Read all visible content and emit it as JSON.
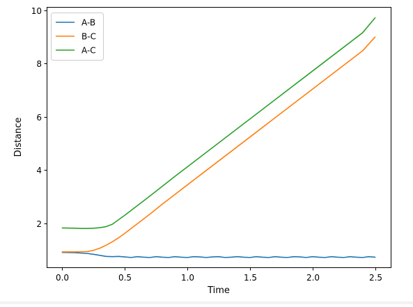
{
  "chart_data": {
    "type": "line",
    "title": "",
    "xlabel": "Time",
    "ylabel": "Distance",
    "xlim": [
      -0.125,
      2.625
    ],
    "ylim": [
      0.34,
      10.13
    ],
    "xticks": [
      0.0,
      0.5,
      1.0,
      1.5,
      2.0,
      2.5
    ],
    "xtick_labels": [
      "0.0",
      "0.5",
      "1.0",
      "1.5",
      "2.0",
      "2.5"
    ],
    "yticks": [
      2,
      4,
      6,
      8,
      10
    ],
    "ytick_labels": [
      "2",
      "4",
      "6",
      "8",
      "10"
    ],
    "grid": false,
    "legend_position": "upper-left",
    "series": [
      {
        "name": "A-B",
        "color": "#1f77b4",
        "x": [
          0.0,
          0.1,
          0.2,
          0.25,
          0.3,
          0.35,
          0.4,
          0.45,
          0.5,
          0.55,
          0.6,
          0.65,
          0.7,
          0.75,
          0.8,
          0.85,
          0.9,
          0.95,
          1.0,
          1.05,
          1.1,
          1.15,
          1.2,
          1.25,
          1.3,
          1.35,
          1.4,
          1.45,
          1.5,
          1.55,
          1.6,
          1.65,
          1.7,
          1.75,
          1.8,
          1.85,
          1.9,
          1.95,
          2.0,
          2.05,
          2.1,
          2.15,
          2.2,
          2.25,
          2.3,
          2.35,
          2.4,
          2.45,
          2.5
        ],
        "y": [
          0.9,
          0.89,
          0.86,
          0.83,
          0.79,
          0.75,
          0.74,
          0.75,
          0.73,
          0.71,
          0.74,
          0.72,
          0.71,
          0.74,
          0.72,
          0.71,
          0.74,
          0.72,
          0.71,
          0.74,
          0.73,
          0.71,
          0.73,
          0.74,
          0.71,
          0.72,
          0.74,
          0.72,
          0.71,
          0.74,
          0.72,
          0.71,
          0.74,
          0.72,
          0.71,
          0.74,
          0.73,
          0.71,
          0.74,
          0.72,
          0.71,
          0.74,
          0.72,
          0.71,
          0.74,
          0.72,
          0.71,
          0.74,
          0.72
        ]
      },
      {
        "name": "B-C",
        "color": "#ff7f0e",
        "x": [
          0.0,
          0.1,
          0.2,
          0.25,
          0.3,
          0.35,
          0.4,
          0.45,
          0.5,
          0.6,
          0.7,
          0.8,
          0.9,
          1.0,
          1.1,
          1.2,
          1.3,
          1.4,
          1.5,
          1.6,
          1.7,
          1.8,
          1.9,
          2.0,
          2.1,
          2.2,
          2.3,
          2.4,
          2.5
        ],
        "y": [
          0.92,
          0.92,
          0.93,
          0.98,
          1.06,
          1.17,
          1.3,
          1.45,
          1.62,
          1.98,
          2.34,
          2.72,
          3.08,
          3.44,
          3.8,
          4.16,
          4.52,
          4.88,
          5.24,
          5.6,
          5.96,
          6.32,
          6.68,
          7.04,
          7.4,
          7.76,
          8.12,
          8.48,
          9.0
        ]
      },
      {
        "name": "A-C",
        "color": "#2ca02c",
        "x": [
          0.0,
          0.1,
          0.15,
          0.2,
          0.25,
          0.3,
          0.35,
          0.4,
          0.45,
          0.5,
          0.6,
          0.7,
          0.8,
          0.9,
          1.0,
          1.1,
          1.2,
          1.3,
          1.4,
          1.5,
          1.6,
          1.7,
          1.8,
          1.9,
          2.0,
          2.1,
          2.2,
          2.3,
          2.4,
          2.5
        ],
        "y": [
          1.82,
          1.81,
          1.8,
          1.8,
          1.81,
          1.83,
          1.87,
          1.96,
          2.13,
          2.3,
          2.66,
          3.02,
          3.39,
          3.76,
          4.12,
          4.48,
          4.84,
          5.2,
          5.56,
          5.92,
          6.28,
          6.64,
          7.0,
          7.36,
          7.72,
          8.08,
          8.44,
          8.8,
          9.16,
          9.72
        ]
      }
    ]
  }
}
